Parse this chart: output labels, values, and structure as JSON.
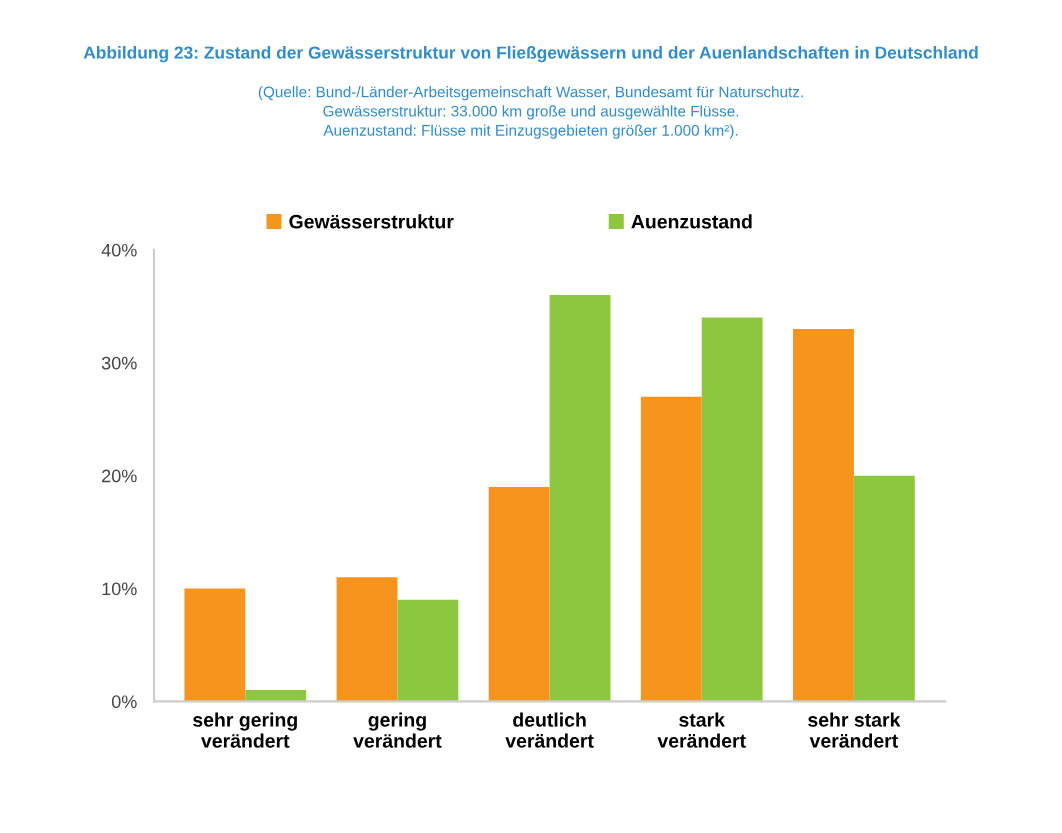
{
  "chart_data": {
    "type": "bar",
    "title": "Abbildung 23: Zustand der Gewässerstruktur von Fließgewässern und der Auenlandschaften in Deutschland",
    "subtitle": "(Quelle: Bund-/Länder-Arbeitsgemeinschaft Wasser, Bundesamt für Naturschutz.\nGewässerstruktur: 33.000 km große und ausgewählte Flüsse.\nAuenzustand: Flüsse mit Einzugsgebieten größer 1.000 km²).",
    "categories": [
      "sehr gering\nverändert",
      "gering\nverändert",
      "deutlich\nverändert",
      "stark\nverändert",
      "sehr stark\nverändert"
    ],
    "series": [
      {
        "name": "Gewässerstruktur",
        "color": "#f7941d",
        "values": [
          10,
          11,
          19,
          27,
          33
        ]
      },
      {
        "name": "Auenzustand",
        "color": "#8dc63f",
        "values": [
          1,
          9,
          36,
          34,
          20
        ]
      }
    ],
    "ylim": [
      0,
      40
    ],
    "yticks": [
      {
        "value": 0,
        "label": "0%"
      },
      {
        "value": 10,
        "label": "10%"
      },
      {
        "value": 20,
        "label": "20%"
      },
      {
        "value": 30,
        "label": "30%"
      },
      {
        "value": 40,
        "label": "40%"
      }
    ],
    "grid": false,
    "legend": "top"
  }
}
